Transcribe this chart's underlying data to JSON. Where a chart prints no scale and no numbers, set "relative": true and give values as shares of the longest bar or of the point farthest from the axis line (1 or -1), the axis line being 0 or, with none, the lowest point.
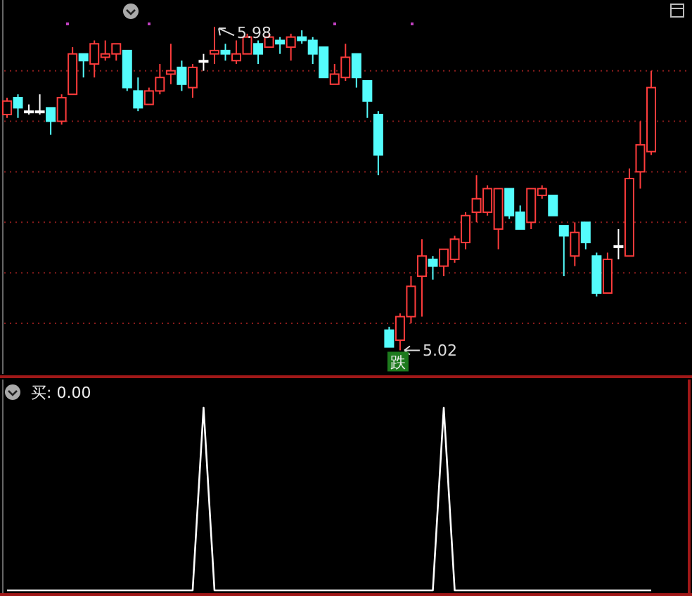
{
  "chart_data": [
    {
      "type": "candlestick",
      "categories": [
        null,
        null,
        null,
        null,
        null,
        null,
        null,
        null,
        null,
        null,
        null,
        null,
        null,
        null,
        null,
        null,
        null,
        null,
        null,
        null,
        null,
        null,
        null,
        null,
        null,
        null,
        null,
        null,
        null,
        null,
        null,
        null,
        null,
        null,
        null,
        null,
        null,
        null,
        null,
        null,
        null,
        null,
        null,
        null,
        null,
        null,
        null,
        null,
        null,
        null,
        null,
        null,
        null,
        null,
        null,
        null,
        null,
        null,
        null,
        null
      ],
      "ohlc": [
        [
          5.72,
          5.77,
          5.71,
          5.76
        ],
        [
          5.77,
          5.78,
          5.71,
          5.74
        ],
        [
          5.73,
          5.75,
          5.72,
          5.73
        ],
        [
          5.73,
          5.78,
          5.72,
          5.73
        ],
        [
          5.74,
          5.74,
          5.66,
          5.7
        ],
        [
          5.7,
          5.78,
          5.69,
          5.77
        ],
        [
          5.78,
          5.92,
          5.78,
          5.9
        ],
        [
          5.9,
          5.9,
          5.83,
          5.88
        ],
        [
          5.87,
          5.94,
          5.83,
          5.93
        ],
        [
          5.89,
          5.94,
          5.88,
          5.9
        ],
        [
          5.9,
          5.93,
          5.88,
          5.93
        ],
        [
          5.91,
          5.91,
          5.79,
          5.8
        ],
        [
          5.79,
          5.83,
          5.73,
          5.74
        ],
        [
          5.75,
          5.8,
          5.75,
          5.79
        ],
        [
          5.79,
          5.87,
          5.78,
          5.83
        ],
        [
          5.84,
          5.93,
          5.81,
          5.85
        ],
        [
          5.86,
          5.88,
          5.79,
          5.81
        ],
        [
          5.8,
          5.87,
          5.77,
          5.86
        ],
        [
          5.88,
          5.9,
          5.85,
          5.88
        ],
        [
          5.9,
          5.98,
          5.87,
          5.91
        ],
        [
          5.91,
          5.93,
          5.88,
          5.9
        ],
        [
          5.88,
          5.94,
          5.87,
          5.9
        ],
        [
          5.9,
          5.96,
          5.9,
          5.95
        ],
        [
          5.93,
          5.94,
          5.87,
          5.9
        ],
        [
          5.92,
          5.96,
          5.92,
          5.95
        ],
        [
          5.94,
          5.95,
          5.9,
          5.93
        ],
        [
          5.92,
          5.96,
          5.88,
          5.95
        ],
        [
          5.95,
          5.97,
          5.93,
          5.94
        ],
        [
          5.94,
          5.95,
          5.87,
          5.9
        ],
        [
          5.92,
          5.92,
          5.83,
          5.83
        ],
        [
          5.81,
          5.87,
          5.81,
          5.84
        ],
        [
          5.83,
          5.93,
          5.82,
          5.89
        ],
        [
          5.9,
          5.9,
          5.8,
          5.83
        ],
        [
          5.82,
          5.82,
          5.71,
          5.76
        ],
        [
          5.72,
          5.73,
          5.54,
          5.6
        ],
        [
          5.08,
          5.09,
          5.03,
          5.03
        ],
        [
          5.05,
          5.13,
          5.02,
          5.12
        ],
        [
          5.12,
          5.24,
          5.1,
          5.21
        ],
        [
          5.24,
          5.35,
          5.12,
          5.3
        ],
        [
          5.29,
          5.3,
          5.23,
          5.27
        ],
        [
          5.27,
          5.32,
          5.24,
          5.32
        ],
        [
          5.29,
          5.36,
          5.28,
          5.35
        ],
        [
          5.34,
          5.43,
          5.32,
          5.42
        ],
        [
          5.43,
          5.54,
          5.4,
          5.47
        ],
        [
          5.43,
          5.51,
          5.42,
          5.5
        ],
        [
          5.38,
          5.5,
          5.32,
          5.5
        ],
        [
          5.5,
          5.5,
          5.41,
          5.42
        ],
        [
          5.43,
          5.45,
          5.38,
          5.38
        ],
        [
          5.4,
          5.5,
          5.38,
          5.5
        ],
        [
          5.48,
          5.51,
          5.47,
          5.5
        ],
        [
          5.48,
          5.48,
          5.42,
          5.42
        ],
        [
          5.39,
          5.39,
          5.24,
          5.36
        ],
        [
          5.3,
          5.4,
          5.27,
          5.37
        ],
        [
          5.4,
          5.4,
          5.32,
          5.34
        ],
        [
          5.3,
          5.31,
          5.18,
          5.19
        ],
        [
          5.19,
          5.31,
          5.19,
          5.29
        ],
        [
          5.33,
          5.38,
          5.29,
          5.33
        ],
        [
          5.3,
          5.56,
          5.3,
          5.53
        ],
        [
          5.55,
          5.7,
          5.5,
          5.63
        ],
        [
          5.61,
          5.85,
          5.6,
          5.8
        ]
      ],
      "colors": [
        "#ff3c3c",
        "#54fcfc",
        "#ffffff",
        "#ffffff",
        "#54fcfc",
        "#ff3c3c",
        "#ff3c3c",
        "#54fcfc",
        "#ff3c3c",
        "#ff3c3c",
        "#ff3c3c",
        "#54fcfc",
        "#54fcfc",
        "#ff3c3c",
        "#ff3c3c",
        "#ff3c3c",
        "#54fcfc",
        "#ff3c3c",
        "#ffffff",
        "#ff3c3c",
        "#54fcfc",
        "#ff3c3c",
        "#ff3c3c",
        "#54fcfc",
        "#ff3c3c",
        "#54fcfc",
        "#ff3c3c",
        "#54fcfc",
        "#54fcfc",
        "#54fcfc",
        "#ff3c3c",
        "#ff3c3c",
        "#54fcfc",
        "#54fcfc",
        "#54fcfc",
        "#54fcfc",
        "#ff3c3c",
        "#ff3c3c",
        "#ff3c3c",
        "#54fcfc",
        "#ff3c3c",
        "#ff3c3c",
        "#ff3c3c",
        "#ff3c3c",
        "#ff3c3c",
        "#ff3c3c",
        "#54fcfc",
        "#54fcfc",
        "#ff3c3c",
        "#ff3c3c",
        "#54fcfc",
        "#54fcfc",
        "#ff3c3c",
        "#54fcfc",
        "#54fcfc",
        "#ff3c3c",
        "#ffffff",
        "#ff3c3c",
        "#ff3c3c",
        "#ff3c3c"
      ],
      "ylim": [
        4.95,
        6.06
      ],
      "yticks": [
        {
          "value": 5.1,
          "label": null
        },
        {
          "value": 5.25,
          "label": null
        },
        {
          "value": 5.4,
          "label": null
        },
        {
          "value": 5.55,
          "label": null
        },
        {
          "value": 5.7,
          "label": null
        },
        {
          "value": 5.85,
          "label": null
        }
      ],
      "grid": "y",
      "annotations": [
        "5.98",
        "5.02",
        "跌"
      ]
    },
    {
      "type": "line",
      "title": "买: 0.00",
      "categories": [
        null,
        null,
        null,
        null,
        null,
        null,
        null,
        null,
        null,
        null,
        null,
        null,
        null,
        null,
        null,
        null,
        null,
        null,
        null,
        null,
        null,
        null,
        null,
        null,
        null,
        null,
        null,
        null,
        null,
        null,
        null,
        null,
        null,
        null,
        null,
        null,
        null,
        null,
        null,
        null,
        null,
        null,
        null,
        null,
        null,
        null,
        null,
        null,
        null,
        null,
        null,
        null,
        null,
        null,
        null,
        null,
        null,
        null,
        null,
        null
      ],
      "values": [
        0,
        0,
        0,
        0,
        0,
        0,
        0,
        0,
        0,
        0,
        0,
        0,
        0,
        0,
        0,
        0,
        0,
        0,
        1,
        0,
        0,
        0,
        0,
        0,
        0,
        0,
        0,
        0,
        0,
        0,
        0,
        0,
        0,
        0,
        0,
        0,
        0,
        0,
        0,
        0,
        1,
        0,
        0,
        0,
        0,
        0,
        0,
        0,
        0,
        0,
        0,
        0,
        0,
        0,
        0,
        0,
        0,
        0,
        0,
        0
      ],
      "color": "#ffffff",
      "relative": true
    }
  ]
}
